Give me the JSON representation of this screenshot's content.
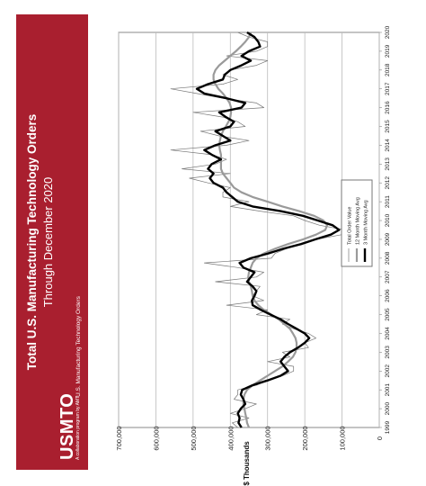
{
  "banner": {
    "title": "Total U.S. Manufacturing Technology Orders",
    "subtitle": "Through December 2020",
    "logo": "USMTO",
    "logo_tagline": "A collaboration program by AMT",
    "program_name": "U.S. Manufacturing Technology Orders",
    "color": "#a91f2f"
  },
  "chart_data": {
    "type": "line",
    "title": "",
    "ylabel": "$ Thousands",
    "xlabel": "",
    "ylim": [
      0,
      700000
    ],
    "yticks": [
      "0",
      "100,000",
      "200,000",
      "300,000",
      "400,000",
      "500,000",
      "600,000",
      "700,000"
    ],
    "x_tick_labels": [
      "1999",
      "2000",
      "2001",
      "2002",
      "2003",
      "2004",
      "2005",
      "2006",
      "2007",
      "2008",
      "2009",
      "2010",
      "2011",
      "2012",
      "2013",
      "2014",
      "2015",
      "2016",
      "2017",
      "2018",
      "2019",
      "2020"
    ],
    "orientation": "rotated-90",
    "grid": true,
    "legend_placement": "center-left of plot",
    "x_start": "1999",
    "x_step_years": 0.25,
    "series": [
      {
        "name": "Total Order Value",
        "color": "#777777",
        "values": [
          380000,
          395000,
          350000,
          400000,
          360000,
          330000,
          390000,
          380000,
          380000,
          330000,
          300000,
          260000,
          230000,
          230000,
          300000,
          240000,
          260000,
          190000,
          200000,
          170000,
          190000,
          230000,
          260000,
          240000,
          330000,
          300000,
          410000,
          310000,
          340000,
          330000,
          320000,
          440000,
          330000,
          310000,
          380000,
          470000,
          290000,
          280000,
          250000,
          210000,
          170000,
          100000,
          90000,
          160000,
          200000,
          230000,
          320000,
          400000,
          350000,
          420000,
          420000,
          400000,
          460000,
          510000,
          400000,
          530000,
          440000,
          410000,
          450000,
          560000,
          410000,
          350000,
          430000,
          480000,
          360000,
          380000,
          420000,
          500000,
          310000,
          330000,
          420000,
          490000,
          560000,
          420000,
          380000,
          420000,
          400000,
          330000,
          300000,
          410000,
          330000,
          300000,
          300000,
          350000,
          380000,
          390000
        ]
      },
      {
        "name": "12 Month Moving Avg",
        "color": "#9a9a9a",
        "values": [
          350000,
          355000,
          357000,
          360000,
          362000,
          365000,
          365000,
          362000,
          355000,
          340000,
          320000,
          300000,
          280000,
          260000,
          245000,
          232000,
          225000,
          222000,
          222000,
          225000,
          232000,
          240000,
          255000,
          270000,
          290000,
          310000,
          325000,
          335000,
          340000,
          342000,
          345000,
          350000,
          352000,
          350000,
          345000,
          340000,
          330000,
          310000,
          280000,
          245000,
          205000,
          170000,
          145000,
          140000,
          150000,
          175000,
          215000,
          260000,
          300000,
          340000,
          370000,
          390000,
          400000,
          410000,
          420000,
          425000,
          425000,
          425000,
          425000,
          428000,
          430000,
          428000,
          425000,
          420000,
          412000,
          405000,
          400000,
          398000,
          398000,
          402000,
          410000,
          420000,
          432000,
          440000,
          445000,
          445000,
          440000,
          430000,
          415000,
          400000,
          385000,
          372000,
          360000,
          350000,
          345000,
          345000
        ]
      },
      {
        "name": "3 Month Moving Avg",
        "color": "#000000",
        "values": [
          370000,
          378000,
          375000,
          380000,
          372000,
          360000,
          365000,
          372000,
          368000,
          340000,
          300000,
          265000,
          245000,
          255000,
          265000,
          255000,
          240000,
          218000,
          200000,
          188000,
          200000,
          222000,
          245000,
          265000,
          292000,
          318000,
          340000,
          342000,
          335000,
          330000,
          340000,
          355000,
          345000,
          335000,
          365000,
          375000,
          345000,
          298000,
          258000,
          210000,
          172000,
          130000,
          108000,
          125000,
          165000,
          205000,
          265000,
          340000,
          380000,
          395000,
          410000,
          420000,
          445000,
          455000,
          445000,
          460000,
          450000,
          425000,
          450000,
          470000,
          440000,
          400000,
          420000,
          440000,
          400000,
          390000,
          412000,
          430000,
          370000,
          360000,
          410000,
          470000,
          490000,
          460000,
          420000,
          415000,
          400000,
          370000,
          345000,
          370000,
          350000,
          320000,
          325000,
          335000,
          355000,
          350000
        ]
      }
    ]
  }
}
